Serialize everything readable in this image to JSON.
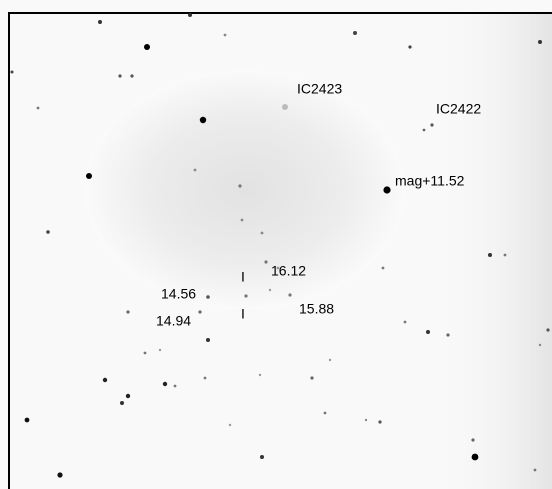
{
  "labels": {
    "ic2423": "IC2423",
    "ic2422": "IC2422",
    "bright_star": "mag+11.52",
    "mag_a": "16.12",
    "mag_b": "14.56",
    "mag_c": "14.94",
    "mag_d": "15.88",
    "marker_top": "I",
    "marker_bottom": "I"
  }
}
